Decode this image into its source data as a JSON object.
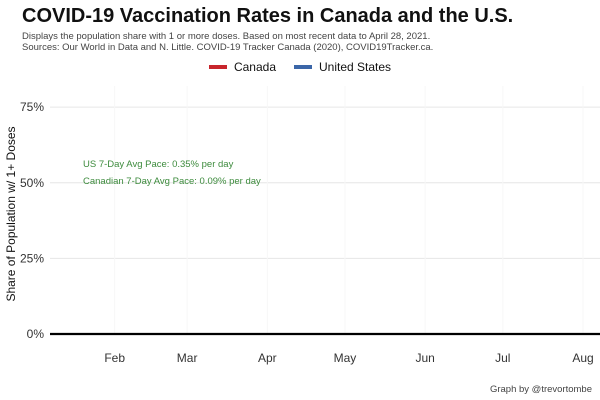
{
  "chart_data": {
    "type": "line",
    "title": "COVID-19 Vaccination Rates in Canada and the U.S.",
    "subtitle_lines": [
      "Displays the population share with 1 or more doses. Based on most recent data to April 28, 2021.",
      "Sources: Our World in Data and N. Little. COVID-19 Tracker Canada (2020), COVID19Tracker.ca."
    ],
    "ylabel": "Share of Population w/ 1+ Doses",
    "xlabel": "",
    "ylim": [
      0,
      0.82
    ],
    "yticks": [
      {
        "value": 0.75,
        "label": "75%"
      },
      {
        "value": 0.5,
        "label": "50%"
      },
      {
        "value": 0.25,
        "label": "25%"
      },
      {
        "value": 0.0,
        "label": "0%"
      }
    ],
    "xlim": [
      "2021-01-07",
      "2021-08-01"
    ],
    "xticks": [
      {
        "value": "2021-02-01",
        "label": "Feb"
      },
      {
        "value": "2021-03-01",
        "label": "Mar"
      },
      {
        "value": "2021-04-01",
        "label": "Apr"
      },
      {
        "value": "2021-05-01",
        "label": "May"
      },
      {
        "value": "2021-06-01",
        "label": "Jun"
      },
      {
        "value": "2021-07-01",
        "label": "Jul"
      },
      {
        "value": "2021-08-01",
        "label": "Aug"
      }
    ],
    "grid": true,
    "legend_position": "top",
    "series": [
      {
        "name": "Canada",
        "color": "#c8252c",
        "x": [],
        "y": []
      },
      {
        "name": "United States",
        "color": "#3b66a8",
        "x": [],
        "y": []
      }
    ],
    "annotations": [
      {
        "text": "US 7-Day Avg Pace: 0.35% per day",
        "color": "#3d8b3d"
      },
      {
        "text": "Canadian 7-Day Avg Pace: 0.09% per day",
        "color": "#3d8b3d"
      }
    ],
    "caption": "Graph by @trevortombe"
  }
}
